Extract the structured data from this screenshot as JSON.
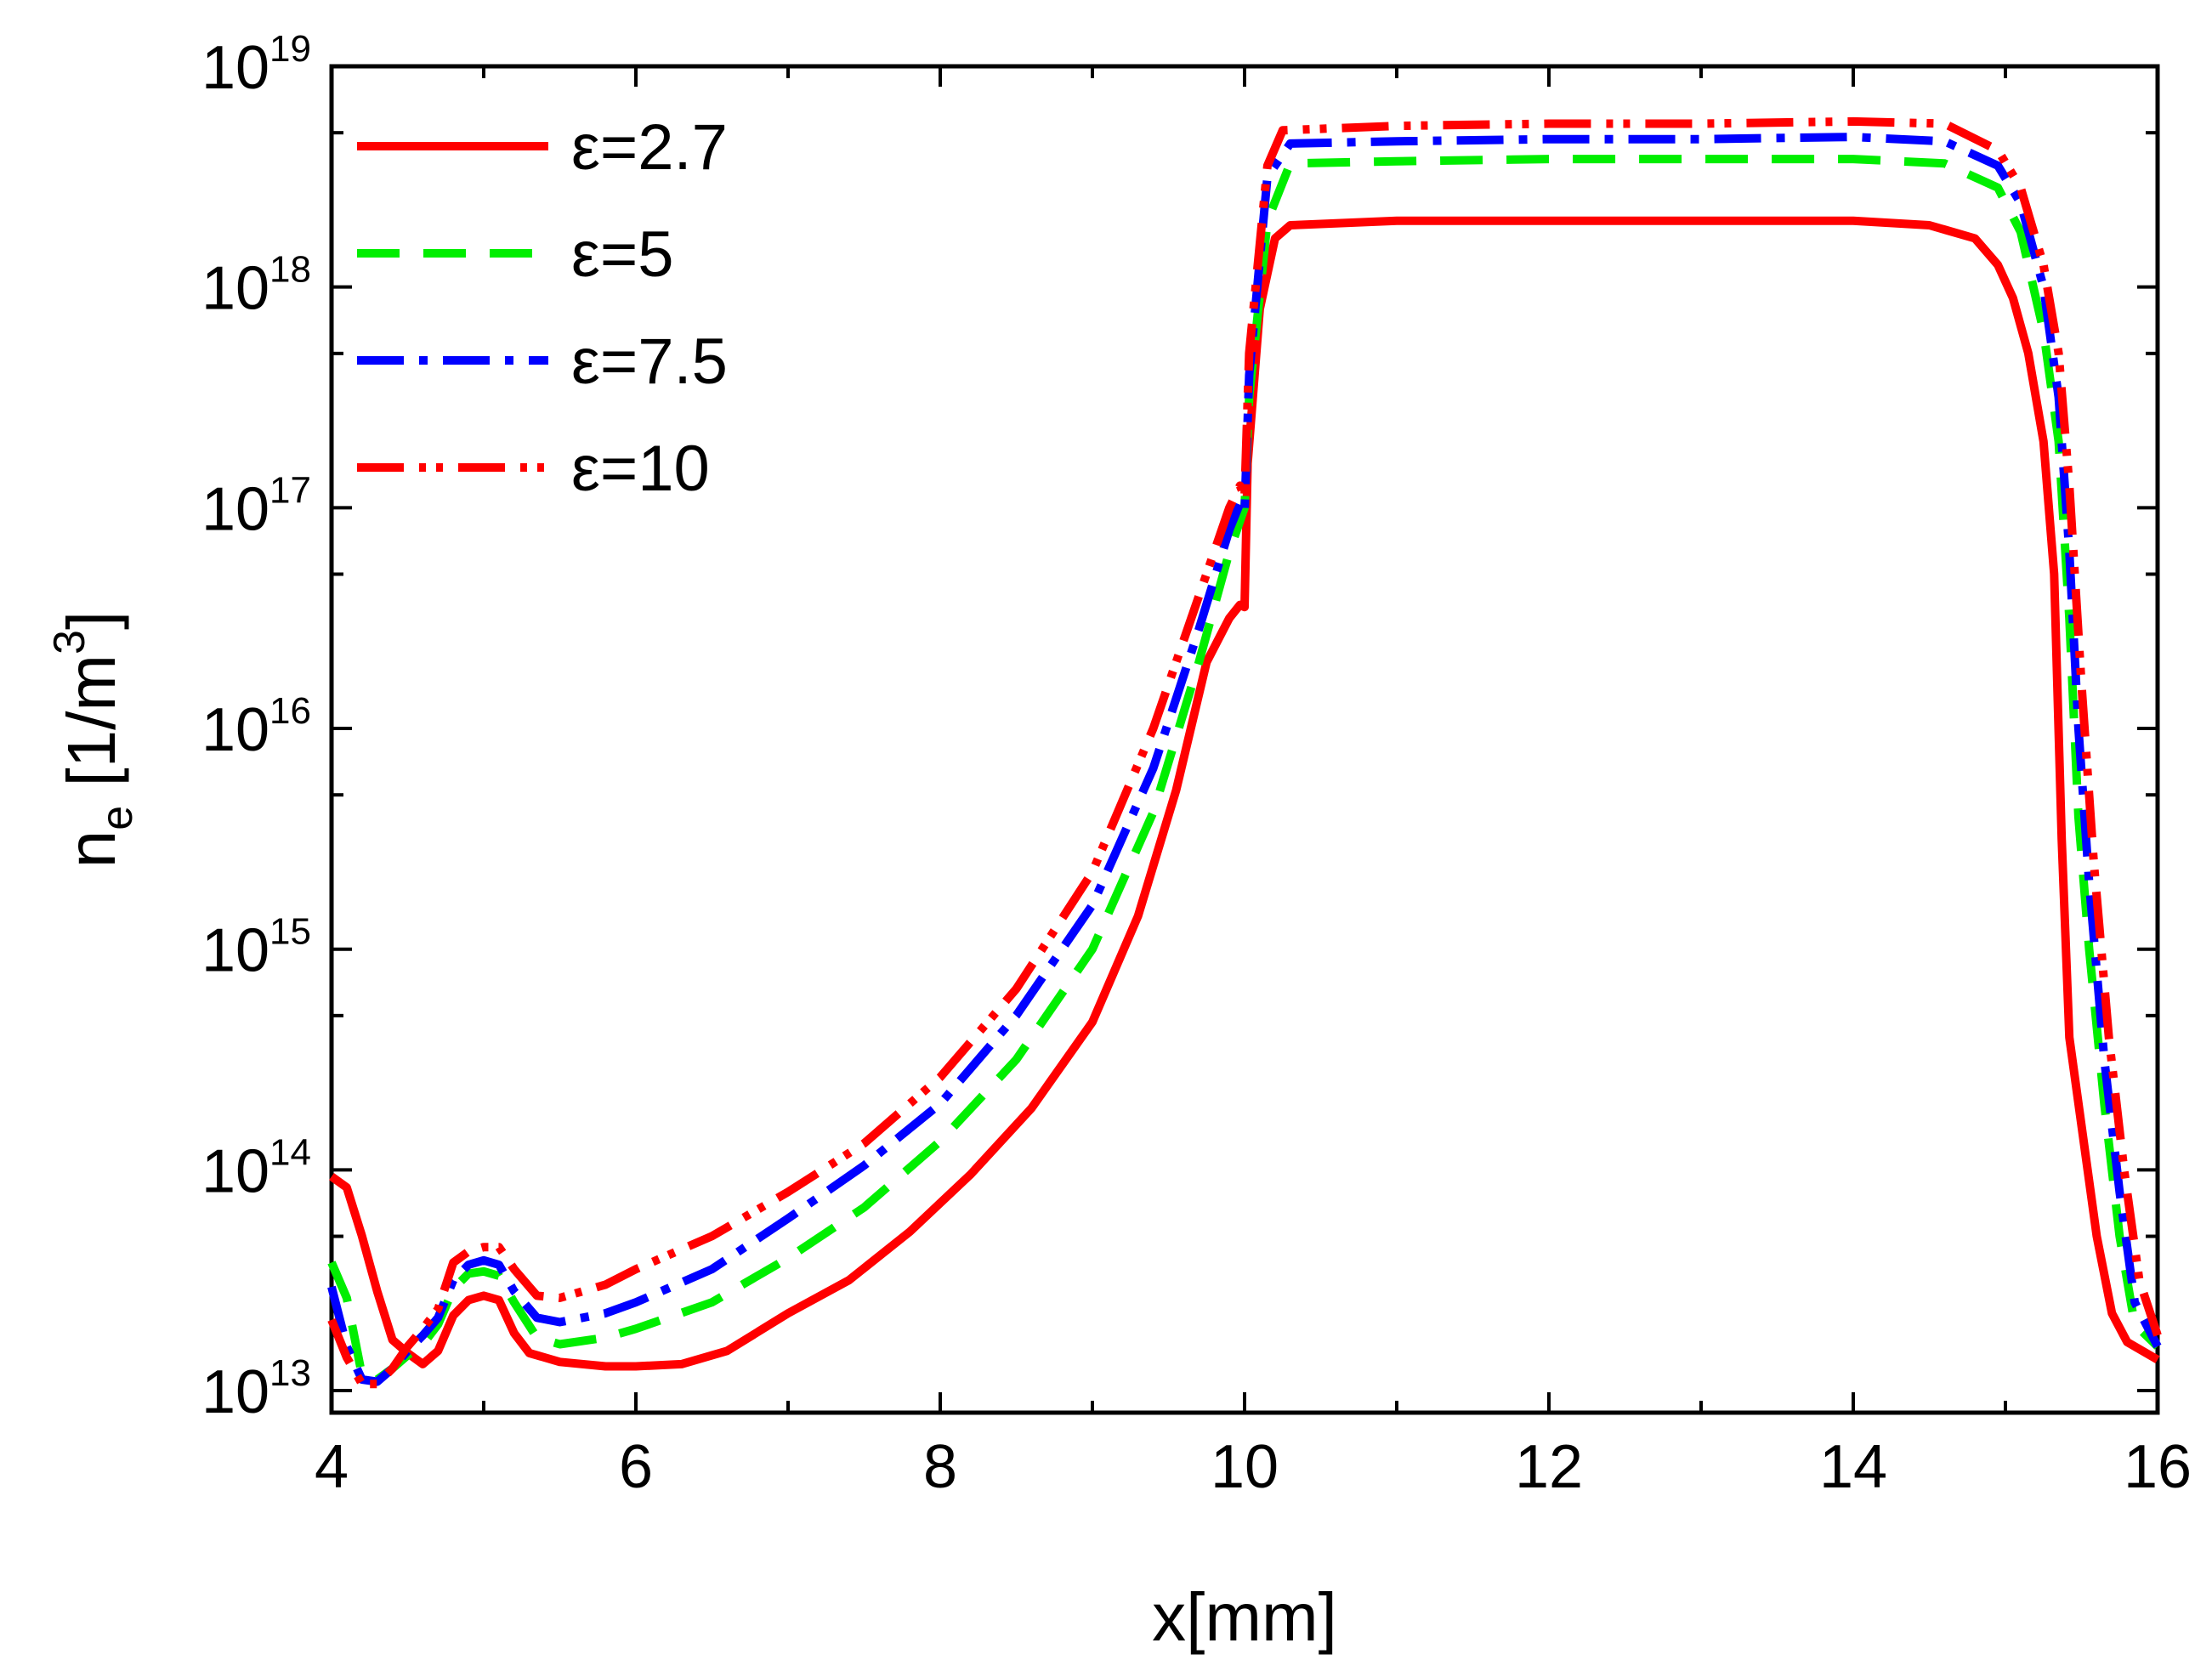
{
  "chart_data": {
    "type": "line",
    "xlabel": "x[mm]",
    "ylabel": {
      "base": "n",
      "sub": "e",
      "unit_open": " [1/m",
      "unit_sup": "3",
      "unit_close": "]"
    },
    "xlim": [
      4,
      16
    ],
    "ylim_log10": [
      12.9,
      19
    ],
    "yscale": "log",
    "x_ticks": [
      {
        "value": 4,
        "label": "4"
      },
      {
        "value": 6,
        "label": "6"
      },
      {
        "value": 8,
        "label": "8"
      },
      {
        "value": 10,
        "label": "10"
      },
      {
        "value": 12,
        "label": "12"
      },
      {
        "value": 14,
        "label": "14"
      },
      {
        "value": 16,
        "label": "16"
      }
    ],
    "y_ticks": [
      {
        "exp": 13,
        "base": "10",
        "sup": "13"
      },
      {
        "exp": 14,
        "base": "10",
        "sup": "14"
      },
      {
        "exp": 15,
        "base": "10",
        "sup": "15"
      },
      {
        "exp": 16,
        "base": "10",
        "sup": "16"
      },
      {
        "exp": 17,
        "base": "10",
        "sup": "17"
      },
      {
        "exp": 18,
        "base": "10",
        "sup": "18"
      },
      {
        "exp": 19,
        "base": "10",
        "sup": "19"
      }
    ],
    "legend_position": "top-left",
    "series": [
      {
        "name": "ε=2.7",
        "color": "#ff0000",
        "dash": "solid",
        "points": [
          [
            4,
            13.97
          ],
          [
            4.1,
            13.92
          ],
          [
            4.2,
            13.7
          ],
          [
            4.3,
            13.45
          ],
          [
            4.4,
            13.23
          ],
          [
            4.5,
            13.17
          ],
          [
            4.6,
            13.12
          ],
          [
            4.7,
            13.18
          ],
          [
            4.8,
            13.34
          ],
          [
            4.9,
            13.41
          ],
          [
            5.0,
            13.43
          ],
          [
            5.1,
            13.41
          ],
          [
            5.2,
            13.26
          ],
          [
            5.3,
            13.17
          ],
          [
            5.5,
            13.13
          ],
          [
            5.8,
            13.11
          ],
          [
            6.0,
            13.11
          ],
          [
            6.3,
            13.12
          ],
          [
            6.6,
            13.18
          ],
          [
            7.0,
            13.35
          ],
          [
            7.4,
            13.5
          ],
          [
            7.8,
            13.72
          ],
          [
            8.2,
            13.98
          ],
          [
            8.6,
            14.28
          ],
          [
            9.0,
            14.67
          ],
          [
            9.3,
            15.15
          ],
          [
            9.55,
            15.72
          ],
          [
            9.75,
            16.3
          ],
          [
            9.9,
            16.5
          ],
          [
            9.97,
            16.56
          ],
          [
            10.0,
            16.55
          ],
          [
            10.02,
            17.2
          ],
          [
            10.1,
            17.9
          ],
          [
            10.2,
            18.22
          ],
          [
            10.3,
            18.28
          ],
          [
            11,
            18.3
          ],
          [
            12,
            18.3
          ],
          [
            13,
            18.3
          ],
          [
            14,
            18.3
          ],
          [
            14.5,
            18.28
          ],
          [
            14.8,
            18.22
          ],
          [
            14.95,
            18.1
          ],
          [
            15.05,
            17.95
          ],
          [
            15.15,
            17.7
          ],
          [
            15.25,
            17.3
          ],
          [
            15.32,
            16.7
          ],
          [
            15.37,
            15.5
          ],
          [
            15.42,
            14.6
          ],
          [
            15.52,
            14.1
          ],
          [
            15.6,
            13.7
          ],
          [
            15.7,
            13.35
          ],
          [
            15.8,
            13.22
          ],
          [
            15.9,
            13.18
          ],
          [
            16,
            13.14
          ]
        ]
      },
      {
        "name": "ε=5",
        "color": "#00ee00",
        "dash": "50,28",
        "points": [
          [
            4,
            13.58
          ],
          [
            4.1,
            13.42
          ],
          [
            4.2,
            13.07
          ],
          [
            4.3,
            13.05
          ],
          [
            4.4,
            13.1
          ],
          [
            4.5,
            13.16
          ],
          [
            4.6,
            13.21
          ],
          [
            4.7,
            13.3
          ],
          [
            4.8,
            13.46
          ],
          [
            4.9,
            13.53
          ],
          [
            5.0,
            13.54
          ],
          [
            5.1,
            13.52
          ],
          [
            5.2,
            13.4
          ],
          [
            5.35,
            13.24
          ],
          [
            5.5,
            13.21
          ],
          [
            5.8,
            13.24
          ],
          [
            6.0,
            13.28
          ],
          [
            6.5,
            13.4
          ],
          [
            7.0,
            13.6
          ],
          [
            7.5,
            13.83
          ],
          [
            8.0,
            14.13
          ],
          [
            8.5,
            14.5
          ],
          [
            9.0,
            15.0
          ],
          [
            9.4,
            15.62
          ],
          [
            9.7,
            16.3
          ],
          [
            9.9,
            16.8
          ],
          [
            10.0,
            17.0
          ],
          [
            10.03,
            17.5
          ],
          [
            10.15,
            18.3
          ],
          [
            10.3,
            18.56
          ],
          [
            11,
            18.57
          ],
          [
            12,
            18.58
          ],
          [
            13,
            18.58
          ],
          [
            14,
            18.58
          ],
          [
            14.6,
            18.56
          ],
          [
            14.95,
            18.45
          ],
          [
            15.1,
            18.25
          ],
          [
            15.25,
            17.8
          ],
          [
            15.35,
            17.3
          ],
          [
            15.42,
            16.5
          ],
          [
            15.48,
            15.6
          ],
          [
            15.55,
            15.0
          ],
          [
            15.65,
            14.3
          ],
          [
            15.75,
            13.7
          ],
          [
            15.85,
            13.3
          ],
          [
            16,
            13.2
          ]
        ]
      },
      {
        "name": "ε=7.5",
        "color": "#0000ff",
        "dash": "55,18,10,18",
        "points": [
          [
            4,
            13.47
          ],
          [
            4.1,
            13.2
          ],
          [
            4.2,
            13.05
          ],
          [
            4.3,
            13.04
          ],
          [
            4.4,
            13.1
          ],
          [
            4.5,
            13.18
          ],
          [
            4.6,
            13.25
          ],
          [
            4.7,
            13.33
          ],
          [
            4.8,
            13.5
          ],
          [
            4.9,
            13.57
          ],
          [
            5.0,
            13.59
          ],
          [
            5.1,
            13.57
          ],
          [
            5.2,
            13.45
          ],
          [
            5.35,
            13.33
          ],
          [
            5.5,
            13.31
          ],
          [
            5.8,
            13.35
          ],
          [
            6.0,
            13.4
          ],
          [
            6.5,
            13.55
          ],
          [
            7.0,
            13.78
          ],
          [
            7.5,
            14.02
          ],
          [
            8.0,
            14.3
          ],
          [
            8.5,
            14.7
          ],
          [
            9.0,
            15.2
          ],
          [
            9.4,
            15.82
          ],
          [
            9.7,
            16.45
          ],
          [
            9.9,
            16.9
          ],
          [
            9.97,
            17.02
          ],
          [
            10.0,
            16.98
          ],
          [
            10.03,
            17.6
          ],
          [
            10.15,
            18.5
          ],
          [
            10.3,
            18.65
          ],
          [
            11,
            18.66
          ],
          [
            12,
            18.67
          ],
          [
            13,
            18.67
          ],
          [
            14,
            18.68
          ],
          [
            14.6,
            18.66
          ],
          [
            14.95,
            18.55
          ],
          [
            15.1,
            18.38
          ],
          [
            15.25,
            18.0
          ],
          [
            15.35,
            17.5
          ],
          [
            15.42,
            16.8
          ],
          [
            15.48,
            16.0
          ],
          [
            15.55,
            15.3
          ],
          [
            15.65,
            14.5
          ],
          [
            15.75,
            13.9
          ],
          [
            15.85,
            13.4
          ],
          [
            16,
            13.2
          ]
        ]
      },
      {
        "name": "ε=10",
        "color": "#ff0000",
        "dash": "55,18,8,12,8,18",
        "points": [
          [
            4,
            13.32
          ],
          [
            4.1,
            13.15
          ],
          [
            4.2,
            13.03
          ],
          [
            4.3,
            13.03
          ],
          [
            4.4,
            13.1
          ],
          [
            4.5,
            13.2
          ],
          [
            4.6,
            13.28
          ],
          [
            4.7,
            13.37
          ],
          [
            4.8,
            13.58
          ],
          [
            4.9,
            13.63
          ],
          [
            5.0,
            13.65
          ],
          [
            5.1,
            13.65
          ],
          [
            5.2,
            13.55
          ],
          [
            5.35,
            13.43
          ],
          [
            5.5,
            13.42
          ],
          [
            5.8,
            13.48
          ],
          [
            6.0,
            13.55
          ],
          [
            6.5,
            13.7
          ],
          [
            7.0,
            13.9
          ],
          [
            7.5,
            14.12
          ],
          [
            8.0,
            14.42
          ],
          [
            8.5,
            14.82
          ],
          [
            9.0,
            15.35
          ],
          [
            9.4,
            16.0
          ],
          [
            9.7,
            16.6
          ],
          [
            9.9,
            17.0
          ],
          [
            9.97,
            17.1
          ],
          [
            10.0,
            17.05
          ],
          [
            10.03,
            17.7
          ],
          [
            10.15,
            18.55
          ],
          [
            10.25,
            18.71
          ],
          [
            11,
            18.73
          ],
          [
            12,
            18.74
          ],
          [
            13,
            18.74
          ],
          [
            14,
            18.75
          ],
          [
            14.6,
            18.74
          ],
          [
            14.95,
            18.62
          ],
          [
            15.1,
            18.45
          ],
          [
            15.25,
            18.1
          ],
          [
            15.35,
            17.7
          ],
          [
            15.42,
            17.1
          ],
          [
            15.5,
            16.2
          ],
          [
            15.58,
            15.4
          ],
          [
            15.68,
            14.6
          ],
          [
            15.78,
            14.0
          ],
          [
            15.88,
            13.5
          ],
          [
            16,
            13.25
          ]
        ]
      }
    ]
  }
}
